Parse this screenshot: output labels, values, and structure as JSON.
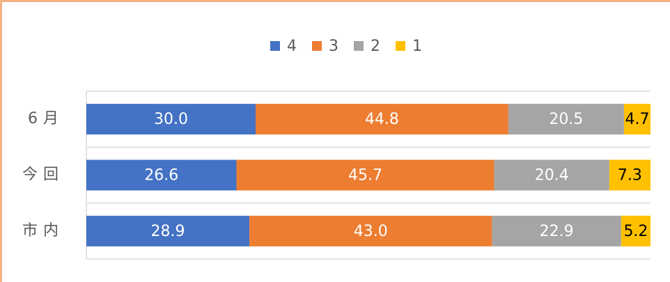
{
  "chart_data": {
    "type": "stacked-bar-horizontal",
    "categories": [
      "6月",
      "今回",
      "市内"
    ],
    "series": [
      {
        "name": "4",
        "color": "#4472c4",
        "values": [
          30.0,
          26.6,
          28.9
        ],
        "value_labels": [
          "30.0",
          "26.6",
          "28.9"
        ]
      },
      {
        "name": "3",
        "color": "#ed7d31",
        "values": [
          44.8,
          45.7,
          43.0
        ],
        "value_labels": [
          "44.8",
          "45.7",
          "43.0"
        ]
      },
      {
        "name": "2",
        "color": "#a5a5a5",
        "values": [
          20.5,
          20.4,
          22.9
        ],
        "value_labels": [
          "20.5",
          "20.4",
          "22.9"
        ]
      },
      {
        "name": "1",
        "color": "#ffc000",
        "values": [
          4.7,
          7.3,
          5.2
        ],
        "value_labels": [
          "4.7",
          "7.3",
          "5.2"
        ]
      }
    ],
    "xlim": [
      0,
      100
    ],
    "legend": "top"
  }
}
